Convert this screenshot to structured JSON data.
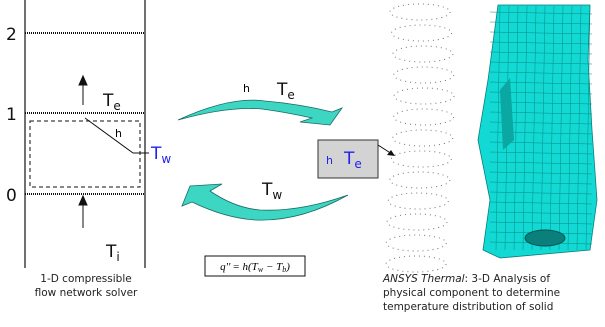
{
  "network": {
    "levels": [
      "2",
      "1",
      "0"
    ],
    "exit_temp": {
      "symbol": "T",
      "sub": "e"
    },
    "wall_coef": "h",
    "wall_temp": {
      "symbol": "T",
      "sub": "w"
    },
    "inlet_temp": {
      "symbol": "T",
      "sub": "i"
    },
    "caption": [
      "1-D compressible",
      "flow network solver"
    ]
  },
  "coupling": {
    "top": {
      "coef": "h",
      "temp": {
        "symbol": "T",
        "sub": "e"
      }
    },
    "bottom": {
      "temp": {
        "symbol": "T",
        "sub": "w"
      }
    },
    "formula": {
      "lhs": "q''",
      "rhs": "= h(T",
      "sub1": "w",
      "mid": " − T",
      "sub2": "b",
      "end": ")"
    }
  },
  "boundary_box": {
    "coef": "h",
    "temp": {
      "symbol": "T",
      "sub": "e"
    }
  },
  "ansys": {
    "title": "ANSYS Thermal",
    "lines": [
      ":  3-D Analysis of",
      "physical component to determine",
      "temperature distribution of solid"
    ]
  }
}
